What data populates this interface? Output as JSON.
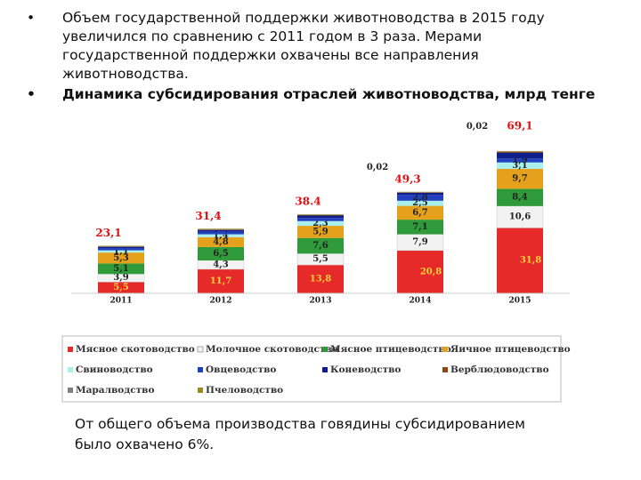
{
  "bullets": [
    "Объем государственной поддержки животноводства в 2015 году увеличился по сравнению с 2011 годом в 3 раза. Мерами государственной поддержки охвачены все направления животноводства.",
    "Динамика субсидирования отраслей животноводства, млрд тенге"
  ],
  "note": "От общего объема производства говядины субсидированием было охвачено 6%.",
  "chart_data": {
    "type": "stacked-bar",
    "categories": [
      "2011",
      "2012",
      "2013",
      "2014",
      "2015"
    ],
    "series": [
      {
        "name": "Мясное скотоводство",
        "color": "#e62a2a",
        "values": [
          5.5,
          11.7,
          13.8,
          20.8,
          31.8
        ],
        "value_labels": [
          "5,5",
          "11,7",
          "13,8",
          "20,8",
          "31,8"
        ]
      },
      {
        "name": "Молочное скотоводство",
        "color": "#f2f2f2",
        "values": [
          3.9,
          4.3,
          5.5,
          7.9,
          10.6
        ],
        "value_labels": [
          "3,9",
          "4,3",
          "5,5",
          "7,9",
          "10,6"
        ]
      },
      {
        "name": "Мясное птицеводство",
        "color": "#2f9a3a",
        "values": [
          5.1,
          6.5,
          7.6,
          7.1,
          8.4
        ],
        "value_labels": [
          "5,1",
          "6,5",
          "7,6",
          "7,1",
          "8,4"
        ]
      },
      {
        "name": "Яичное птицеводство",
        "color": "#e5a11c",
        "values": [
          5.3,
          4.8,
          5.9,
          6.7,
          9.7
        ],
        "value_labels": [
          "5,3",
          "4,8",
          "5,9",
          "6,7",
          "9,7"
        ]
      },
      {
        "name": "Свиноводство",
        "color": "#a8f0ee",
        "values": [
          1.1,
          1.4,
          2.3,
          2.5,
          3.1
        ],
        "value_labels": [
          "1,1",
          "1,4",
          "2,3",
          "2,5",
          "3,1"
        ]
      },
      {
        "name": "Овцеводство",
        "color": "#2040c0",
        "values": [
          1.1,
          1.2,
          1.5,
          2.8,
          1.9
        ],
        "value_labels": [
          null,
          null,
          null,
          "2,8",
          "1,9"
        ]
      },
      {
        "name": "Коневодство",
        "color": "#101e8c",
        "values": [
          0.6,
          0.9,
          1.2,
          1.1,
          2.9
        ],
        "value_labels": [
          null,
          null,
          null,
          null,
          null
        ]
      },
      {
        "name": "Верблюдоводство",
        "color": "#8b4a14",
        "values": [
          0.2,
          0.2,
          0.3,
          0.2,
          0.4
        ],
        "value_labels": [
          null,
          null,
          null,
          null,
          null
        ]
      },
      {
        "name": "Маралводство",
        "color": "#7f7f7f",
        "values": [
          0.1,
          0.1,
          0.1,
          0.02,
          0.02
        ],
        "value_labels": [
          null,
          null,
          null,
          "0,02",
          "0,02"
        ]
      },
      {
        "name": "Пчеловодство",
        "color": "#9a8a1c",
        "values": [
          0.2,
          0.3,
          0.2,
          0.2,
          0.3
        ],
        "value_labels": [
          null,
          null,
          null,
          null,
          null
        ]
      }
    ],
    "totals": [
      23.1,
      31.4,
      38.4,
      49.3,
      69.1
    ],
    "total_labels": [
      "23,1",
      "31,4",
      "38.4",
      "49,3",
      "69,1"
    ],
    "total_color": "#e01010"
  }
}
